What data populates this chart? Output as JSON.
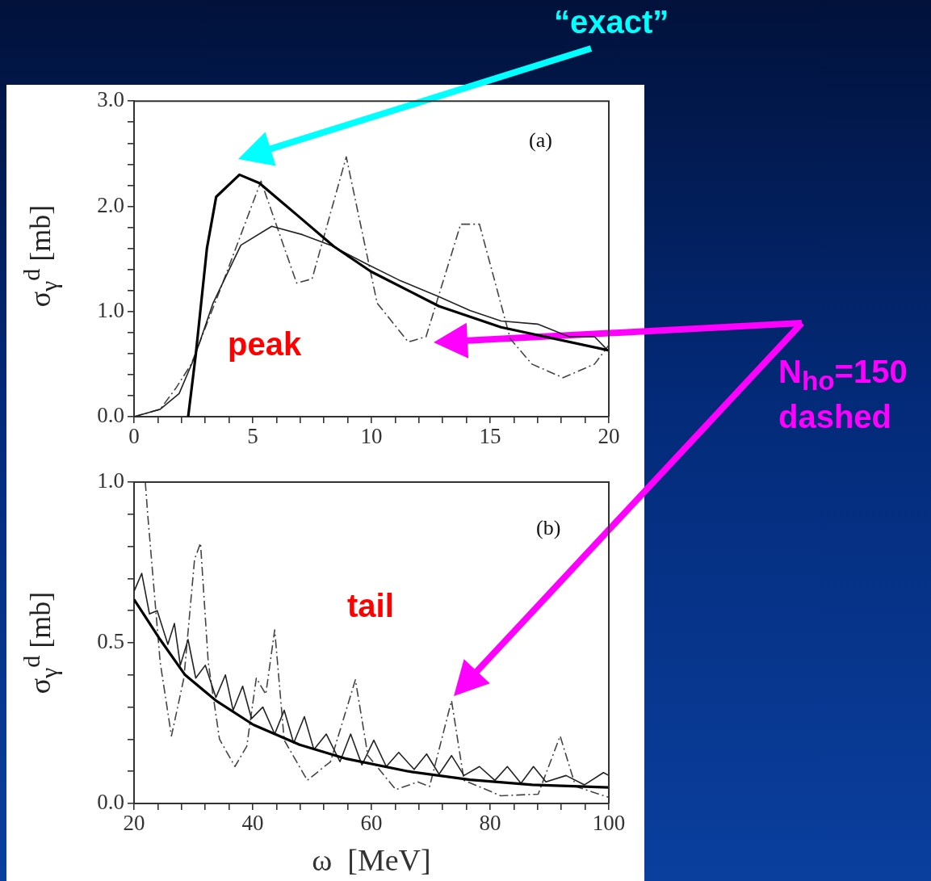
{
  "chart_data": [
    {
      "type": "line",
      "ylabel": "σ$_{γ}$$^{d}$ [mb]",
      "annotations": [
        "(a)",
        "peak",
        "“exact”",
        "N$_{ho}$=150\ndashed"
      ],
      "xlim": [
        0,
        20
      ],
      "ylim": [
        0,
        3
      ],
      "xticks": [
        0,
        {
          "value": 1,
          "label": null
        },
        {
          "value": 2,
          "label": null
        },
        {
          "value": 3,
          "label": null
        },
        {
          "value": 4,
          "label": null
        },
        5,
        {
          "value": 6,
          "label": null
        },
        {
          "value": 7,
          "label": null
        },
        {
          "value": 8,
          "label": null
        },
        {
          "value": 9,
          "label": null
        },
        10,
        {
          "value": 11,
          "label": null
        },
        {
          "value": 12,
          "label": null
        },
        {
          "value": 13,
          "label": null
        },
        {
          "value": 14,
          "label": null
        },
        15,
        {
          "value": 16,
          "label": null
        },
        {
          "value": 17,
          "label": null
        },
        {
          "value": 18,
          "label": null
        },
        {
          "value": 19,
          "label": null
        },
        20
      ],
      "yticks": [
        {
          "value": 0,
          "label": "0.0"
        },
        {
          "value": 0.2,
          "label": null
        },
        {
          "value": 0.4,
          "label": null
        },
        {
          "value": 0.6,
          "label": null
        },
        {
          "value": 0.8,
          "label": null
        },
        {
          "value": 1,
          "label": "1.0"
        },
        {
          "value": 1.2,
          "label": null
        },
        {
          "value": 1.4,
          "label": null
        },
        {
          "value": 1.6,
          "label": null
        },
        {
          "value": 1.8,
          "label": null
        },
        {
          "value": 2,
          "label": "2.0"
        },
        {
          "value": 2.2,
          "label": null
        },
        {
          "value": 2.4,
          "label": null
        },
        {
          "value": 2.6,
          "label": null
        },
        {
          "value": 2.8,
          "label": null
        },
        {
          "value": 3,
          "label": "3.0"
        }
      ],
      "line_style": "solid",
      "series": [
        {
          "color": "#000000",
          "x": [
            2.28,
            2.6,
            3.07,
            3.46,
            4.44,
            5.28,
            6.85,
            8.41,
            9.98,
            12.85,
            15.46,
            20
          ],
          "values": [
            0,
            0.59,
            1.6,
            2.09,
            2.3,
            2.22,
            1.92,
            1.62,
            1.38,
            1.05,
            0.85,
            0.63
          ]
        },
        {
          "color": "#222222",
          "x": [
            0,
            1.1,
            1.9,
            2.54,
            3.33,
            4.5,
            5.8,
            7.1,
            8.28,
            9.72,
            11.15,
            12.85,
            14.15,
            15.46,
            17,
            18.33,
            19.4,
            20
          ],
          "values": [
            0,
            0.07,
            0.22,
            0.56,
            1.08,
            1.63,
            1.81,
            1.73,
            1.63,
            1.46,
            1.3,
            1.14,
            1.01,
            0.91,
            0.88,
            0.76,
            0.76,
            0.62
          ]
        },
        {
          "color": "#444444",
          "line_style": "dashed",
          "x": [
            0,
            1.1,
            1.76,
            2.41,
            3.7,
            5.35,
            6.85,
            7.5,
            8.94,
            10.24,
            11.55,
            12.3,
            13.76,
            14.55,
            15.85,
            16.76,
            18.07,
            19.4,
            20
          ],
          "values": [
            0,
            0.07,
            0.27,
            0.5,
            1.25,
            2.24,
            1.27,
            1.31,
            2.47,
            1.08,
            0.71,
            0.76,
            1.83,
            1.83,
            0.74,
            0.5,
            0.37,
            0.5,
            0.68
          ]
        }
      ]
    },
    {
      "type": "line",
      "ylabel": "σ$_{γ}$$^{d}$ [mb]",
      "xlabel": "ω  [MeV]",
      "annotations": [
        "(b)",
        "tail"
      ],
      "xlim": [
        20,
        100
      ],
      "ylim": [
        0,
        1
      ],
      "xticks": [
        20,
        {
          "value": 24,
          "label": null
        },
        {
          "value": 28,
          "label": null
        },
        {
          "value": 32,
          "label": null
        },
        {
          "value": 36,
          "label": null
        },
        40,
        {
          "value": 44,
          "label": null
        },
        {
          "value": 48,
          "label": null
        },
        {
          "value": 52,
          "label": null
        },
        {
          "value": 56,
          "label": null
        },
        60,
        {
          "value": 64,
          "label": null
        },
        {
          "value": 68,
          "label": null
        },
        {
          "value": 72,
          "label": null
        },
        {
          "value": 76,
          "label": null
        },
        80,
        {
          "value": 84,
          "label": null
        },
        {
          "value": 88,
          "label": null
        },
        {
          "value": 92,
          "label": null
        },
        {
          "value": 96,
          "label": null
        },
        100
      ],
      "yticks": [
        {
          "value": 0,
          "label": "0.0"
        },
        {
          "value": 0.1,
          "label": null
        },
        {
          "value": 0.2,
          "label": null
        },
        {
          "value": 0.3,
          "label": null
        },
        {
          "value": 0.4,
          "label": null
        },
        {
          "value": 0.5,
          "label": "0.5"
        },
        {
          "value": 0.6,
          "label": null
        },
        {
          "value": 0.7,
          "label": null
        },
        {
          "value": 0.8,
          "label": null
        },
        {
          "value": 0.9,
          "label": null
        },
        {
          "value": 1,
          "label": "1.0"
        }
      ],
      "line_style": "solid",
      "series": [
        {
          "color": "#000000",
          "x": [
            20,
            24.4,
            28.6,
            33.8,
            40.1,
            47.9,
            55.8,
            66.2,
            76.6,
            87.1,
            100
          ],
          "values": [
            0.635,
            0.51,
            0.4,
            0.32,
            0.245,
            0.183,
            0.139,
            0.1,
            0.074,
            0.058,
            0.05
          ]
        },
        {
          "color": "#222222",
          "x": [
            20,
            21.3,
            22.6,
            23.9,
            25.7,
            26.8,
            27.8,
            29.1,
            30.4,
            32,
            33.8,
            35.4,
            36.7,
            38.3,
            39.8,
            41.7,
            43.7,
            45.3,
            46.9,
            48.7,
            50.3,
            52.4,
            54.7,
            56.5,
            58.4,
            60.4,
            62.5,
            64.6,
            67.2,
            69.3,
            71.4,
            73.5,
            75.6,
            78.2,
            80.8,
            82.9,
            85.2,
            87.3,
            89.4,
            92.8,
            95.9,
            99.1,
            100
          ],
          "values": [
            0.66,
            0.716,
            0.59,
            0.6,
            0.495,
            0.56,
            0.43,
            0.51,
            0.39,
            0.43,
            0.33,
            0.4,
            0.29,
            0.365,
            0.264,
            0.3,
            0.216,
            0.29,
            0.188,
            0.27,
            0.168,
            0.216,
            0.13,
            0.216,
            0.12,
            0.197,
            0.115,
            0.159,
            0.106,
            0.154,
            0.091,
            0.149,
            0.087,
            0.115,
            0.072,
            0.115,
            0.063,
            0.115,
            0.067,
            0.087,
            0.058,
            0.096,
            0.087
          ]
        },
        {
          "color": "#444444",
          "line_style": "dashed",
          "x": [
            21.9,
            22.3,
            24.4,
            26.3,
            28.4,
            30.2,
            31.2,
            32.5,
            34.4,
            37,
            39,
            40.6,
            42.2,
            43.7,
            45.3,
            49.2,
            53.1,
            57.3,
            59.4,
            64.1,
            67.8,
            69.8,
            73.5,
            75.6,
            81.8,
            88.1,
            91.8,
            94.4,
            100
          ],
          "values": [
            1,
            0.9,
            0.44,
            0.21,
            0.39,
            0.76,
            0.81,
            0.44,
            0.2,
            0.115,
            0.178,
            0.39,
            0.34,
            0.54,
            0.197,
            0.072,
            0.13,
            0.385,
            0.149,
            0.043,
            0.067,
            0.053,
            0.32,
            0.072,
            0.024,
            0.029,
            0.21,
            0.053,
            0.019
          ]
        }
      ]
    }
  ]
}
